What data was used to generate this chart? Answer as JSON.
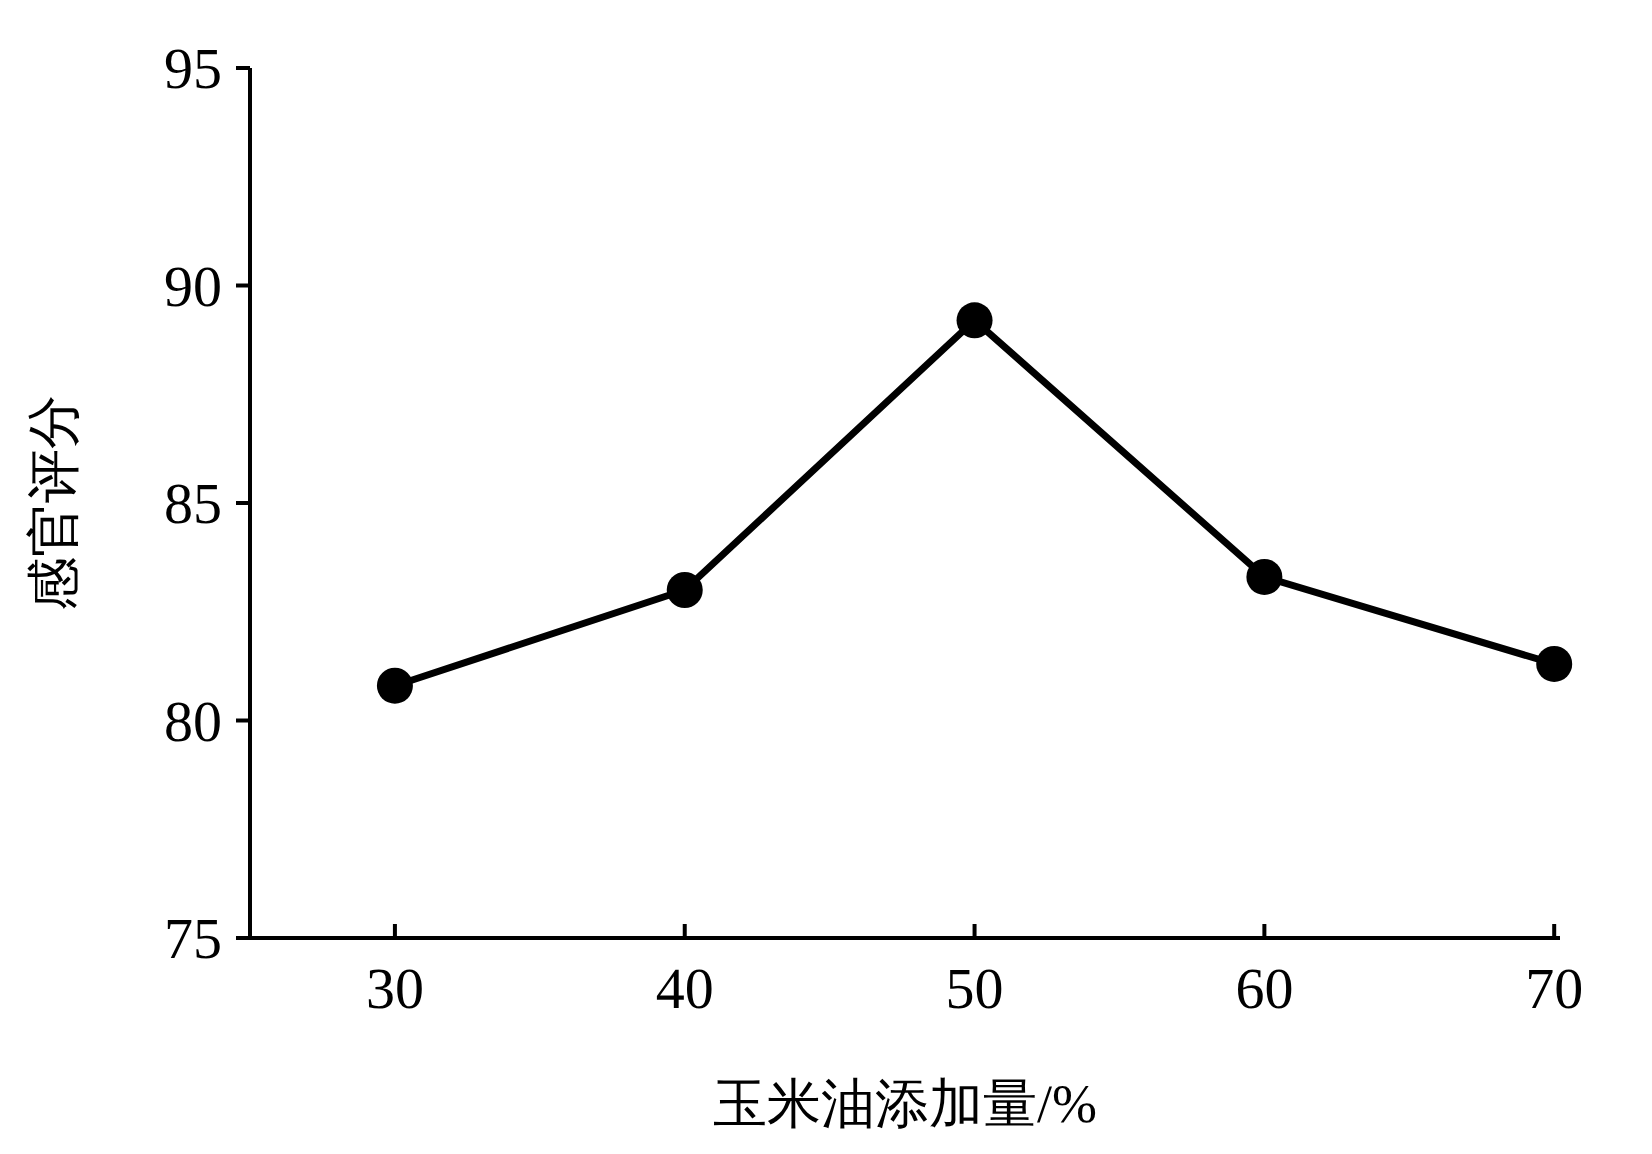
{
  "chart_data": {
    "type": "line",
    "xlabel": "玉米油添加量/%",
    "ylabel": "感官评分",
    "x": [
      30,
      40,
      50,
      60,
      70
    ],
    "series": [
      {
        "color": "#000000",
        "values": [
          80.8,
          83.0,
          89.2,
          83.3,
          81.3
        ]
      }
    ],
    "xlim": [
      25,
      70.2
    ],
    "xticks": [
      30,
      40,
      50,
      60,
      70
    ],
    "ylim": [
      75,
      95
    ],
    "yticks": [
      75,
      80,
      85,
      90,
      95
    ],
    "marker": "circle",
    "line_style": "solid"
  }
}
